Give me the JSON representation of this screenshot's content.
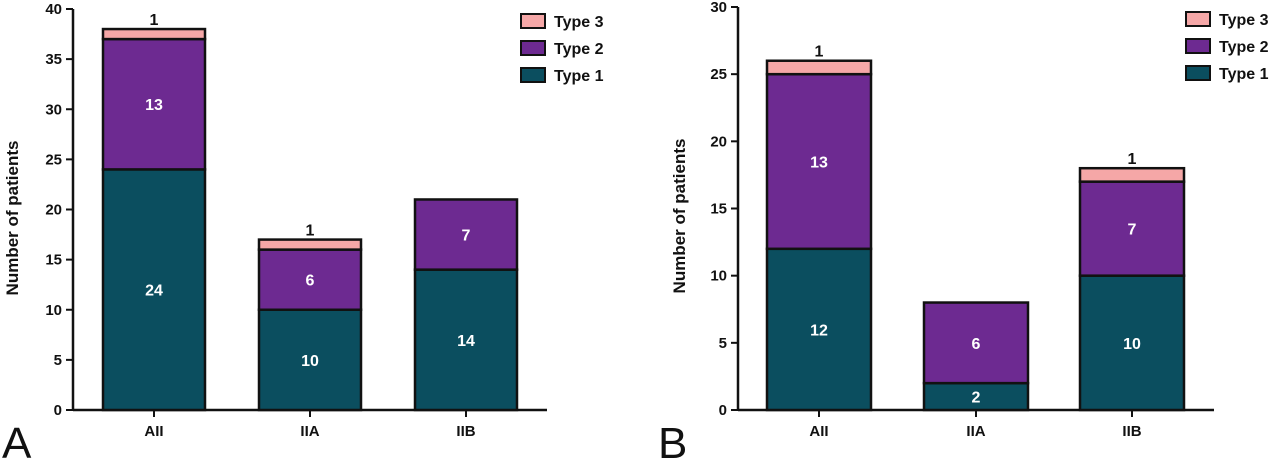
{
  "colors": {
    "type1": "#0b4e5f",
    "type2": "#6d2a91",
    "type3": "#f5a7a7"
  },
  "legend": [
    "Type 3",
    "Type 2",
    "Type 1"
  ],
  "chart_data": [
    {
      "type": "bar",
      "stacked": true,
      "panel": "A",
      "categories": [
        "AII",
        "IIA",
        "IIB"
      ],
      "ylabel": "Number of patients",
      "ylim": [
        0,
        40
      ],
      "yticks": [
        0,
        5,
        10,
        15,
        20,
        25,
        30,
        35,
        40
      ],
      "series": [
        {
          "name": "Type 1",
          "values": [
            24,
            10,
            14
          ]
        },
        {
          "name": "Type 2",
          "values": [
            13,
            6,
            7
          ]
        },
        {
          "name": "Type 3",
          "values": [
            1,
            1,
            0
          ]
        }
      ],
      "legend_position": "top-right"
    },
    {
      "type": "bar",
      "stacked": true,
      "panel": "B",
      "categories": [
        "AII",
        "IIA",
        "IIB"
      ],
      "ylabel": "Number of patients",
      "ylim": [
        0,
        30
      ],
      "yticks": [
        0,
        5,
        10,
        15,
        20,
        25,
        30
      ],
      "series": [
        {
          "name": "Type 1",
          "values": [
            12,
            2,
            10
          ]
        },
        {
          "name": "Type 2",
          "values": [
            13,
            6,
            7
          ]
        },
        {
          "name": "Type 3",
          "values": [
            1,
            0,
            1
          ]
        }
      ],
      "legend_position": "top-right"
    }
  ]
}
